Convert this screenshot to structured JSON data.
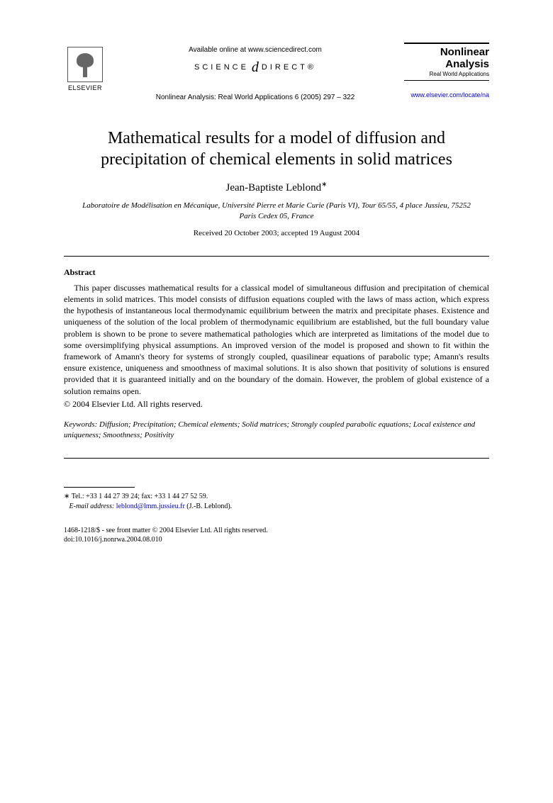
{
  "header": {
    "publisher_name": "ELSEVIER",
    "available_line": "Available online at www.sciencedirect.com",
    "sd_left": "SCIENCE",
    "sd_right": "DIRECT®",
    "journal_ref": "Nonlinear Analysis: Real World Applications 6 (2005) 297 – 322",
    "journal_box_title": "Nonlinear Analysis",
    "journal_box_sub": "Real World Applications",
    "journal_url": "www.elsevier.com/locate/na"
  },
  "paper": {
    "title": "Mathematical results for a model of diffusion and precipitation of chemical elements in solid matrices",
    "author": "Jean-Baptiste Leblond",
    "author_mark": "∗",
    "affiliation": "Laboratoire de Modélisation en Mécanique, Université Pierre et Marie Curie (Paris VI), Tour 65/55, 4 place Jussieu, 75252 Paris Cedex 05, France",
    "dates": "Received 20 October 2003; accepted 19 August 2004"
  },
  "abstract": {
    "heading": "Abstract",
    "body": "This paper discusses mathematical results for a classical model of simultaneous diffusion and precipitation of chemical elements in solid matrices. This model consists of diffusion equations coupled with the laws of mass action, which express the hypothesis of instantaneous local thermodynamic equilibrium between the matrix and precipitate phases. Existence and uniqueness of the solution of the local problem of thermodynamic equilibrium are established, but the full boundary value problem is shown to be prone to severe mathematical pathologies which are interpreted as limitations of the model due to some oversimplifying physical assumptions. An improved version of the model is proposed and shown to fit within the framework of Amann's theory for systems of strongly coupled, quasilinear equations of parabolic type; Amann's results ensure existence, uniqueness and smoothness of maximal solutions. It is also shown that positivity of solutions is ensured provided that it is guaranteed initially and on the boundary of the domain. However, the problem of global existence of a solution remains open.",
    "copyright": "© 2004 Elsevier Ltd. All rights reserved."
  },
  "keywords": {
    "label": "Keywords:",
    "text": " Diffusion; Precipitation; Chemical elements; Solid matrices; Strongly coupled parabolic equations; Local existence and uniqueness; Smoothness; Positivity"
  },
  "footnote": {
    "marker": "∗",
    "contact": " Tel.: +33 1 44 27 39 24; fax: +33 1 44 27 52 59.",
    "email_label": "E-mail address:",
    "email": "leblond@lmm.jussieu.fr",
    "email_tail": " (J.-B. Leblond)."
  },
  "footer": {
    "line1": "1468-1218/$ - see front matter © 2004 Elsevier Ltd. All rights reserved.",
    "line2": "doi:10.1016/j.nonrwa.2004.08.010"
  }
}
